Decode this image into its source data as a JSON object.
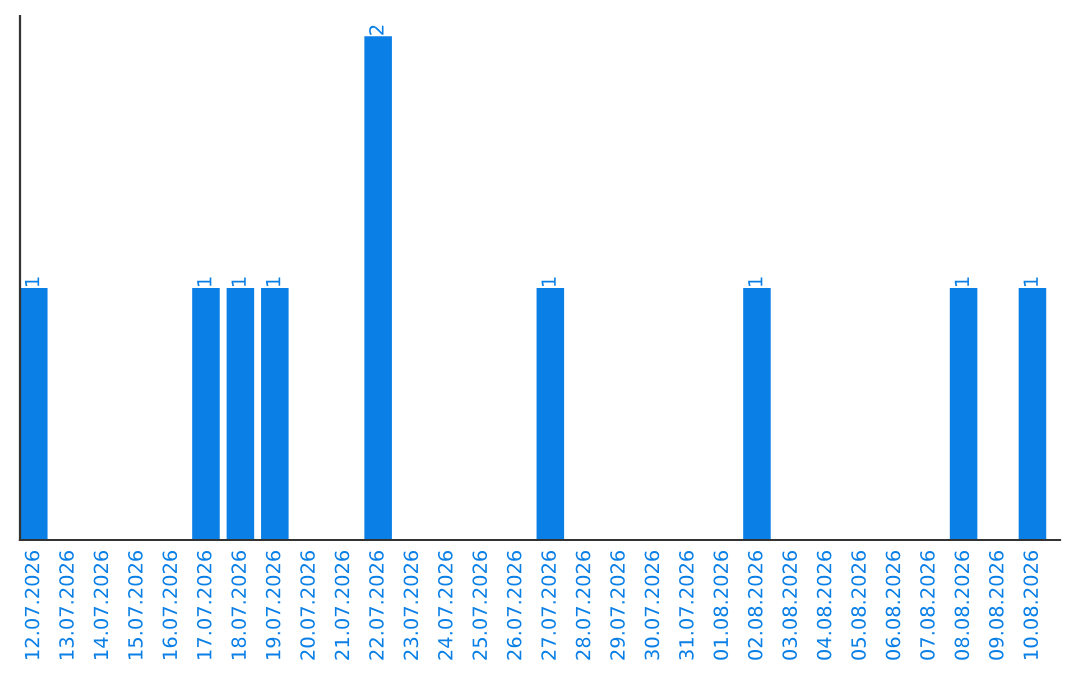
{
  "chart_data": {
    "type": "bar",
    "categories": [
      "12.07.2026",
      "13.07.2026",
      "14.07.2026",
      "15.07.2026",
      "16.07.2026",
      "17.07.2026",
      "18.07.2026",
      "19.07.2026",
      "20.07.2026",
      "21.07.2026",
      "22.07.2026",
      "23.07.2026",
      "24.07.2026",
      "25.07.2026",
      "26.07.2026",
      "27.07.2026",
      "28.07.2026",
      "29.07.2026",
      "30.07.2026",
      "31.07.2026",
      "01.08.2026",
      "02.08.2026",
      "03.08.2026",
      "04.08.2026",
      "05.08.2026",
      "06.08.2026",
      "07.08.2026",
      "08.08.2026",
      "09.08.2026",
      "10.08.2026"
    ],
    "values": [
      1,
      0,
      0,
      0,
      0,
      1,
      1,
      1,
      0,
      0,
      2,
      0,
      0,
      0,
      0,
      1,
      0,
      0,
      0,
      0,
      0,
      1,
      0,
      0,
      0,
      0,
      0,
      1,
      0,
      1
    ],
    "value_labels": [
      "1",
      null,
      null,
      null,
      null,
      "1",
      "1",
      "1",
      null,
      null,
      "2",
      null,
      null,
      null,
      null,
      "1",
      null,
      null,
      null,
      null,
      null,
      "1",
      null,
      null,
      null,
      null,
      null,
      "1",
      null,
      "1"
    ],
    "color": "#0a7fe6",
    "ylim": [
      0,
      2.08
    ],
    "tick_labels": "x",
    "grid": false
  }
}
